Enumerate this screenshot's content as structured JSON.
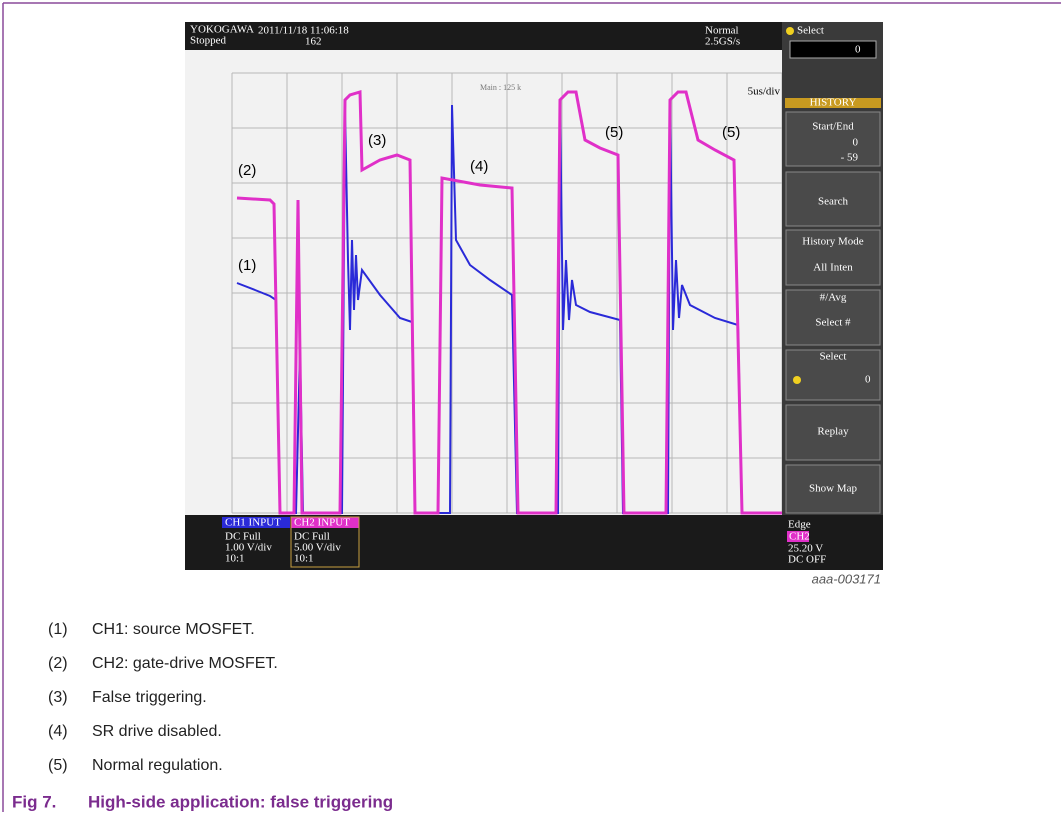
{
  "scope": {
    "header": {
      "brand": "YOKOGAWA",
      "state": "Stopped",
      "datetime": "2011/11/18 11:06:18",
      "count": "162",
      "mode": "Normal",
      "rate": "2.5GS/s",
      "main": "Main : 125 k",
      "timebase": "5us/div"
    },
    "panel": {
      "select_label": "Select",
      "select_value": "0",
      "history": "HISTORY",
      "start_end": "Start/End",
      "start": "0",
      "end": "- 59",
      "search": "Search",
      "history_mode": "History Mode",
      "all_inten": "All Inten",
      "avg": "#/Avg",
      "select_num": "Select #",
      "select2": "Select",
      "select2_value": "0",
      "replay": "Replay",
      "show_map": "Show Map"
    },
    "footer": {
      "ch1": {
        "name": "CH1 INPUT",
        "coupling": "DC Full",
        "scale": "1.00 V/div",
        "probe": "10:1"
      },
      "ch2": {
        "name": "CH2 INPUT",
        "coupling": "DC Full",
        "scale": "5.00 V/div",
        "probe": "10:1"
      },
      "trigger": {
        "type": "Edge",
        "source": "CH2",
        "level": "25.20 V",
        "hold": "DC OFF"
      }
    },
    "annotations": [
      "(1)",
      "(2)",
      "(3)",
      "(4)",
      "(5)",
      "(5)"
    ],
    "figure_id": "aaa-003171"
  },
  "notes": [
    {
      "num": "(1)",
      "text": "CH1: source MOSFET."
    },
    {
      "num": "(2)",
      "text": "CH2: gate-drive MOSFET."
    },
    {
      "num": "(3)",
      "text": "False triggering."
    },
    {
      "num": "(4)",
      "text": "SR drive disabled."
    },
    {
      "num": "(5)",
      "text": "Normal regulation."
    }
  ],
  "caption": {
    "label": "Fig 7.",
    "title": "High-side application: false triggering"
  }
}
